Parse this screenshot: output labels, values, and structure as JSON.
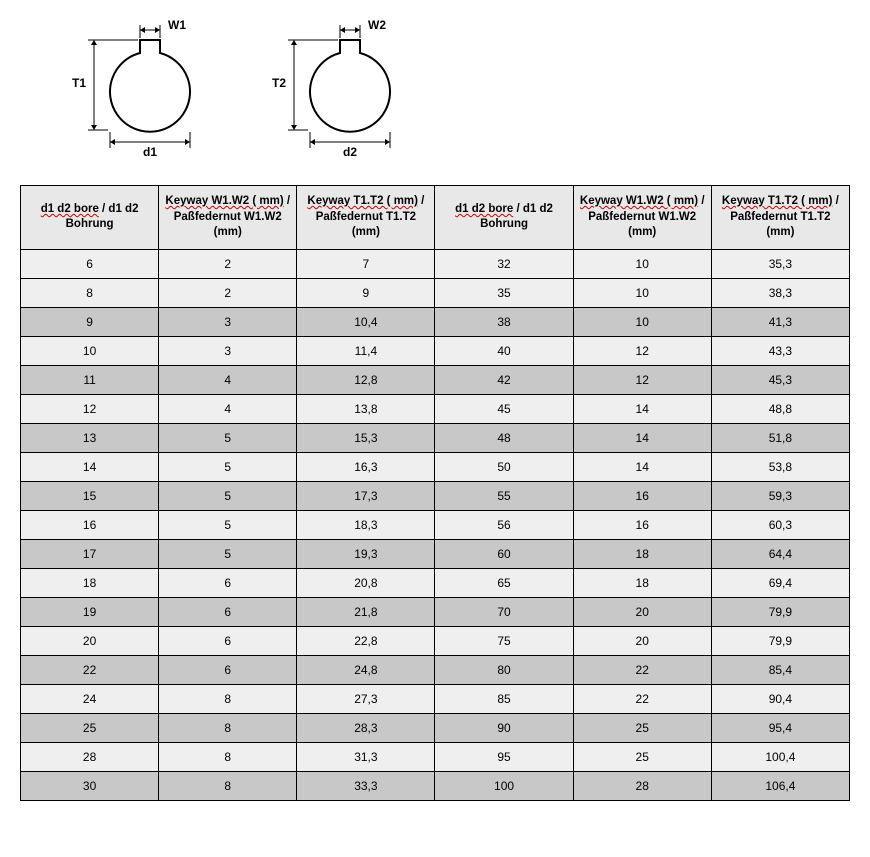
{
  "diagrams": {
    "left": {
      "top": "W1",
      "side": "T1",
      "bottom": "d1"
    },
    "right": {
      "top": "W2",
      "side": "T2",
      "bottom": "d2"
    }
  },
  "table": {
    "headers": [
      {
        "u": "d1 d2 bore",
        "rest": " / d1 d2 Bohrung"
      },
      {
        "u": "Keyway W1.W2 ( mm)",
        "rest": " / Paßfedernut W1.W2 (mm)"
      },
      {
        "u": "Keyway T1.T2 ( mm)",
        "rest": " / Paßfedernut T1.T2 (mm)"
      },
      {
        "u": "d1 d2 bore",
        "rest": " / d1 d2 Bohrung"
      },
      {
        "u": "Keyway W1.W2 ( mm)",
        "rest": " / Paßfedernut W1.W2 (mm)"
      },
      {
        "u": "Keyway T1.T2 ( mm)",
        "rest": " / Paßfedernut T1.T2 (mm)"
      }
    ],
    "rows": [
      [
        "6",
        "2",
        "7",
        "32",
        "10",
        "35,3"
      ],
      [
        "8",
        "2",
        "9",
        "35",
        "10",
        "38,3"
      ],
      [
        "9",
        "3",
        "10,4",
        "38",
        "10",
        "41,3"
      ],
      [
        "10",
        "3",
        "11,4",
        "40",
        "12",
        "43,3"
      ],
      [
        "11",
        "4",
        "12,8",
        "42",
        "12",
        "45,3"
      ],
      [
        "12",
        "4",
        "13,8",
        "45",
        "14",
        "48,8"
      ],
      [
        "13",
        "5",
        "15,3",
        "48",
        "14",
        "51,8"
      ],
      [
        "14",
        "5",
        "16,3",
        "50",
        "14",
        "53,8"
      ],
      [
        "15",
        "5",
        "17,3",
        "55",
        "16",
        "59,3"
      ],
      [
        "16",
        "5",
        "18,3",
        "56",
        "16",
        "60,3"
      ],
      [
        "17",
        "5",
        "19,3",
        "60",
        "18",
        "64,4"
      ],
      [
        "18",
        "6",
        "20,8",
        "65",
        "18",
        "69,4"
      ],
      [
        "19",
        "6",
        "21,8",
        "70",
        "20",
        "79,9"
      ],
      [
        "20",
        "6",
        "22,8",
        "75",
        "20",
        "79,9"
      ],
      [
        "22",
        "6",
        "24,8",
        "80",
        "22",
        "85,4"
      ],
      [
        "24",
        "8",
        "27,3",
        "85",
        "22",
        "90,4"
      ],
      [
        "25",
        "8",
        "28,3",
        "90",
        "25",
        "95,4"
      ],
      [
        "28",
        "8",
        "31,3",
        "95",
        "25",
        "100,4"
      ],
      [
        "30",
        "8",
        "33,3",
        "100",
        "28",
        "106,4"
      ]
    ],
    "row_shade_pattern": "light_dark_alternating_start_light_pair",
    "colors": {
      "header_bg": "#e8e8e8",
      "row_light": "#efefef",
      "row_dark": "#c8c8c8",
      "border": "#000000",
      "underline": "#d00000"
    },
    "column_count": 6
  }
}
